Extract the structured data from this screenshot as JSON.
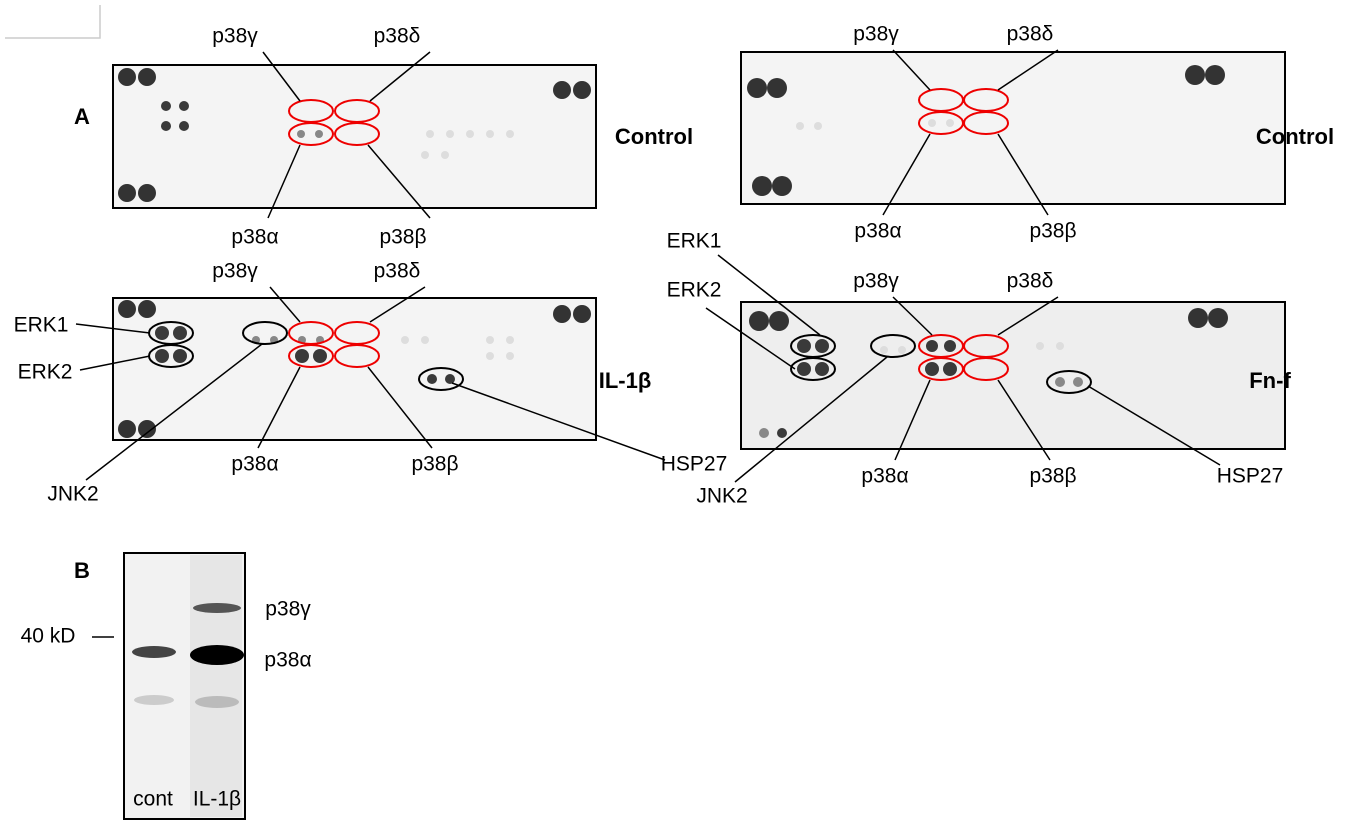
{
  "panel_a": {
    "label": "A",
    "arrays": [
      {
        "condition": "Control",
        "labels": [
          "p38γ",
          "p38δ",
          "p38α",
          "p38β"
        ]
      },
      {
        "condition": "Control",
        "labels": [
          "p38γ",
          "p38δ",
          "p38α",
          "p38β"
        ]
      },
      {
        "condition": "IL-1β",
        "labels": [
          "p38γ",
          "p38δ",
          "ERK1",
          "ERK2",
          "JNK2",
          "p38α",
          "p38β",
          "HSP27"
        ]
      },
      {
        "condition": "Fn-f",
        "labels": [
          "p38γ",
          "p38δ",
          "ERK1",
          "ERK2",
          "JNK2",
          "p38α",
          "p38β",
          "HSP27"
        ]
      }
    ]
  },
  "panel_b": {
    "label": "B",
    "marker": "40 kD",
    "bands": [
      "p38γ",
      "p38α"
    ],
    "lanes": [
      "cont",
      "IL-1β"
    ]
  }
}
